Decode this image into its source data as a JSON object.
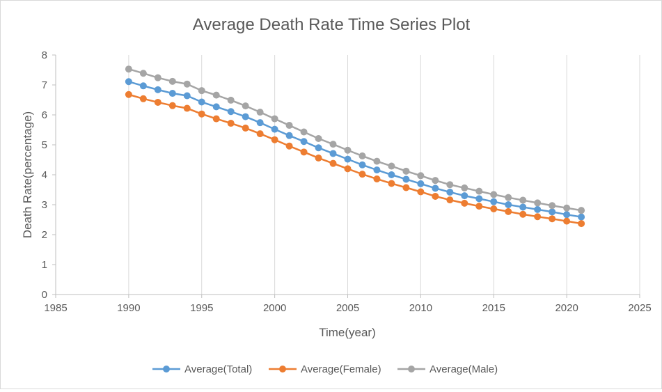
{
  "chart_data": {
    "type": "line",
    "title": "Average Death Rate Time Series Plot",
    "xlabel": "Time(year)",
    "ylabel": "Death Rate(percentage)",
    "xlim": [
      1985,
      2025
    ],
    "ylim": [
      0,
      8
    ],
    "x_ticks": [
      "1985",
      "1990",
      "1995",
      "2000",
      "2005",
      "2010",
      "2015",
      "2020",
      "2025"
    ],
    "y_ticks": [
      "0",
      "1",
      "2",
      "3",
      "4",
      "5",
      "6",
      "7",
      "8"
    ],
    "grid": "vertical",
    "legend_position": "bottom",
    "x": [
      1990,
      1991,
      1992,
      1993,
      1994,
      1995,
      1996,
      1997,
      1998,
      1999,
      2000,
      2001,
      2002,
      2003,
      2004,
      2005,
      2006,
      2007,
      2008,
      2009,
      2010,
      2011,
      2012,
      2013,
      2014,
      2015,
      2016,
      2017,
      2018,
      2019,
      2020,
      2021
    ],
    "series": [
      {
        "name": "Average(Total)",
        "color": "#5b9bd5",
        "values": [
          7.11,
          6.97,
          6.84,
          6.72,
          6.64,
          6.43,
          6.27,
          6.11,
          5.94,
          5.74,
          5.52,
          5.31,
          5.11,
          4.9,
          4.71,
          4.52,
          4.33,
          4.16,
          4.0,
          3.85,
          3.7,
          3.55,
          3.42,
          3.3,
          3.2,
          3.1,
          3.0,
          2.92,
          2.84,
          2.76,
          2.67,
          2.59
        ]
      },
      {
        "name": "Average(Female)",
        "color": "#ed7d31",
        "values": [
          6.68,
          6.54,
          6.42,
          6.31,
          6.22,
          6.03,
          5.87,
          5.72,
          5.56,
          5.37,
          5.17,
          4.96,
          4.76,
          4.56,
          4.38,
          4.2,
          4.02,
          3.86,
          3.71,
          3.57,
          3.43,
          3.28,
          3.16,
          3.05,
          2.95,
          2.86,
          2.77,
          2.68,
          2.6,
          2.53,
          2.45,
          2.37
        ]
      },
      {
        "name": "Average(Male)",
        "color": "#a5a5a5",
        "values": [
          7.53,
          7.39,
          7.24,
          7.12,
          7.03,
          6.81,
          6.66,
          6.49,
          6.3,
          6.09,
          5.87,
          5.65,
          5.43,
          5.21,
          5.02,
          4.82,
          4.63,
          4.45,
          4.29,
          4.12,
          3.97,
          3.81,
          3.67,
          3.56,
          3.45,
          3.34,
          3.24,
          3.15,
          3.06,
          2.97,
          2.89,
          2.81
        ]
      }
    ]
  }
}
